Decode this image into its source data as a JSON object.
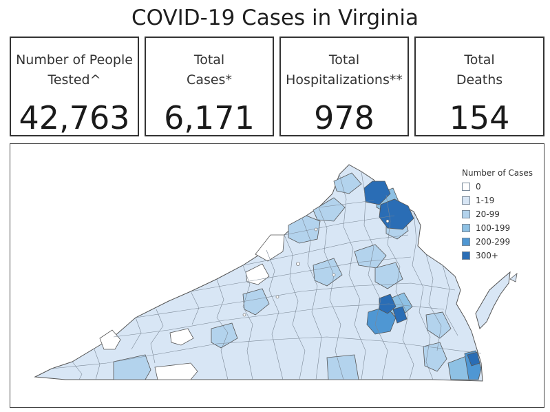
{
  "title": "COVID-19 Cases in Virginia",
  "cards": [
    {
      "label": "Number of People\nTested^",
      "value": "42,763"
    },
    {
      "label": "Total\nCases*",
      "value": "6,171"
    },
    {
      "label": "Total\nHospitalizations**",
      "value": "978"
    },
    {
      "label": "Total\nDeaths",
      "value": "154"
    }
  ],
  "legend": {
    "title": "Number of Cases",
    "items": [
      {
        "label": "0",
        "color": "#ffffff"
      },
      {
        "label": "1-19",
        "color": "#d8e6f5"
      },
      {
        "label": "20-99",
        "color": "#b3d3ed"
      },
      {
        "label": "100-199",
        "color": "#8ec1e4"
      },
      {
        "label": "200-299",
        "color": "#4f97d3"
      },
      {
        "label": "300+",
        "color": "#2a6db5"
      }
    ]
  },
  "map": {
    "region": "Virginia",
    "border_color": "#555555"
  }
}
